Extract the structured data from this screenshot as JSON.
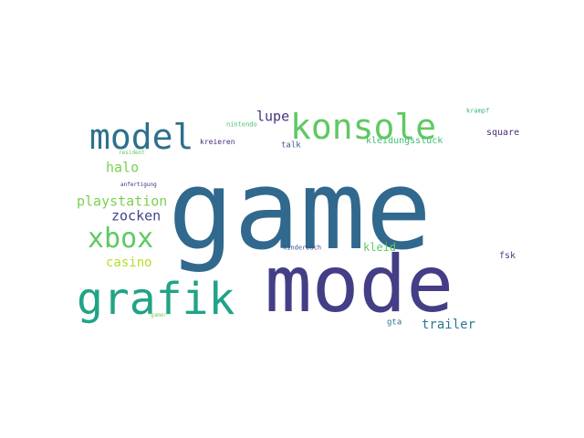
{
  "word_cloud": {
    "words": [
      {
        "key": "game",
        "text": "game",
        "color": "#31688e",
        "weight": 1.0
      },
      {
        "key": "mode",
        "text": "mode",
        "color": "#433e85",
        "weight": 0.7
      },
      {
        "key": "grafik",
        "text": "grafik",
        "color": "#20a386",
        "weight": 0.4
      },
      {
        "key": "konsole",
        "text": "konsole",
        "color": "#5ec962",
        "weight": 0.32
      },
      {
        "key": "model",
        "text": "model",
        "color": "#2d708e",
        "weight": 0.32
      },
      {
        "key": "xbox",
        "text": "xbox",
        "color": "#5ec962",
        "weight": 0.25
      },
      {
        "key": "lupe",
        "text": "lupe",
        "color": "#46327e",
        "weight": 0.12
      },
      {
        "key": "halo",
        "text": "halo",
        "color": "#7ad151",
        "weight": 0.12
      },
      {
        "key": "playstation",
        "text": "playstation",
        "color": "#7ad151",
        "weight": 0.12
      },
      {
        "key": "zocken",
        "text": "zocken",
        "color": "#414487",
        "weight": 0.12
      },
      {
        "key": "casino",
        "text": "casino",
        "color": "#b5de2b",
        "weight": 0.11
      },
      {
        "key": "trailer",
        "text": "trailer",
        "color": "#2a788e",
        "weight": 0.11
      },
      {
        "key": "kleid",
        "text": "kleid",
        "color": "#5ec962",
        "weight": 0.1
      },
      {
        "key": "square",
        "text": "square",
        "color": "#482878",
        "weight": 0.08
      },
      {
        "key": "fsk",
        "text": "fsk",
        "color": "#433e85",
        "weight": 0.08
      },
      {
        "key": "kleidungsstuck",
        "text": "kleidungsstuck",
        "color": "#3fbc73",
        "weight": 0.08
      },
      {
        "key": "talk",
        "text": "talk",
        "color": "#38598c",
        "weight": 0.07
      },
      {
        "key": "kreieren",
        "text": "kreieren",
        "color": "#472d7b",
        "weight": 0.06
      },
      {
        "key": "nintendo",
        "text": "nintendo",
        "color": "#4ac16d",
        "weight": 0.05
      },
      {
        "key": "krampf",
        "text": "krampf",
        "color": "#35b779",
        "weight": 0.05
      },
      {
        "key": "resident",
        "text": "resident",
        "color": "#5ec962",
        "weight": 0.04
      },
      {
        "key": "anfertigung",
        "text": "anfertigung",
        "color": "#472d7b",
        "weight": 0.04
      },
      {
        "key": "kinderbuch",
        "text": "kinderbuch",
        "color": "#3b528b",
        "weight": 0.05
      },
      {
        "key": "gta",
        "text": "gta",
        "color": "#2c728e",
        "weight": 0.07
      },
      {
        "key": "gamer",
        "text": "gamer",
        "color": "#7ad151",
        "weight": 0.04
      }
    ]
  }
}
